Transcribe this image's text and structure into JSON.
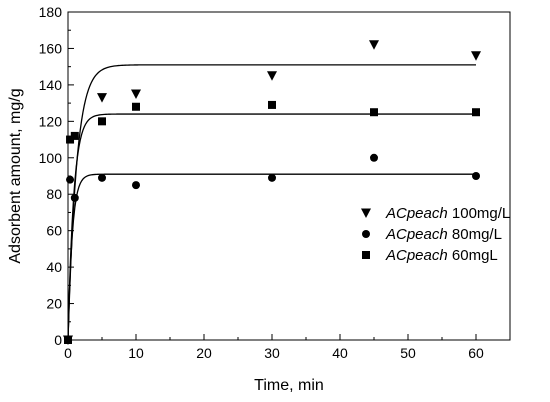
{
  "chart_data": {
    "type": "scatter",
    "title": "",
    "xlabel": "Time, min",
    "ylabel": "Adsorbent amount, mg/g",
    "xlim": [
      0,
      65
    ],
    "ylim": [
      0,
      180
    ],
    "xticks": [
      0,
      10,
      20,
      30,
      40,
      50,
      60
    ],
    "yticks": [
      0,
      20,
      40,
      60,
      80,
      100,
      120,
      140,
      160,
      180
    ],
    "grid": false,
    "legend_position": "right",
    "series": [
      {
        "label_name": "ACpeach",
        "label_conc": " 100mg/L",
        "marker": "triangle-down",
        "points": [
          [
            0,
            0
          ],
          [
            5,
            133
          ],
          [
            10,
            135
          ],
          [
            30,
            145
          ],
          [
            45,
            162
          ],
          [
            60,
            156
          ]
        ],
        "fit": {
          "qe": 151,
          "k": 0.8
        }
      },
      {
        "label_name": "ACpeach",
        "label_conc": "  80mg/L",
        "marker": "circle",
        "points": [
          [
            0,
            0
          ],
          [
            0.3,
            88
          ],
          [
            1,
            78
          ],
          [
            5,
            89
          ],
          [
            10,
            85
          ],
          [
            30,
            89
          ],
          [
            45,
            100
          ],
          [
            60,
            90
          ]
        ],
        "fit": {
          "qe": 91,
          "k": 1.6
        }
      },
      {
        "label_name": "ACpeach",
        "label_conc": "  60mgL",
        "marker": "square",
        "points": [
          [
            0,
            0
          ],
          [
            0.3,
            110
          ],
          [
            1,
            112
          ],
          [
            5,
            120
          ],
          [
            10,
            128
          ],
          [
            30,
            129
          ],
          [
            45,
            125
          ],
          [
            60,
            125
          ]
        ],
        "fit": {
          "qe": 124,
          "k": 1.2
        }
      }
    ]
  }
}
